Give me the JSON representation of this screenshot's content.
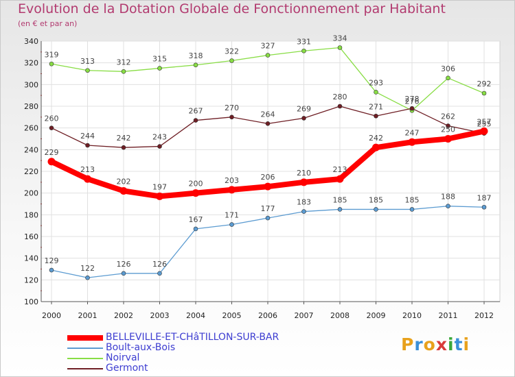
{
  "chart_data": {
    "type": "line",
    "title": "Evolution de la Dotation Globale de Fonctionnement par Habitant",
    "subtitle": "(en € et par an)",
    "xlabel": "",
    "ylabel": "",
    "ylim": [
      100,
      340
    ],
    "ytick_step": 20,
    "grid": true,
    "legend_position": "bottom-left",
    "categories": [
      "2000",
      "2001",
      "2002",
      "2003",
      "2004",
      "2005",
      "2006",
      "2007",
      "2008",
      "2009",
      "2010",
      "2011",
      "2012"
    ],
    "series": [
      {
        "name": "Noirval",
        "color": "#88dd44",
        "values": [
          319,
          313,
          312,
          315,
          318,
          322,
          327,
          331,
          334,
          293,
          276,
          306,
          292
        ]
      },
      {
        "name": "Germont",
        "color": "#6e1e24",
        "values": [
          260,
          244,
          242,
          243,
          267,
          270,
          264,
          269,
          280,
          271,
          278,
          262,
          255
        ]
      },
      {
        "name": "Boult-aux-Bois",
        "color": "#5b9bd1",
        "values": [
          129,
          122,
          126,
          126,
          167,
          171,
          177,
          183,
          185,
          185,
          185,
          188,
          187
        ]
      },
      {
        "name": "BELLEVILLE-ET-CHâTILLON-SUR-BAR",
        "color": "#ff0000",
        "values": [
          229,
          213,
          202,
          197,
          200,
          203,
          206,
          210,
          213,
          242,
          247,
          250,
          257
        ]
      }
    ],
    "legend_order": [
      3,
      2,
      0,
      1
    ]
  },
  "logo": {
    "text": "Proxiti",
    "colors": [
      "#e8a11c",
      "#3a8fd8",
      "#e8a11c",
      "#d93a3a",
      "#3aa83a",
      "#3a8fd8",
      "#e8a11c"
    ]
  }
}
